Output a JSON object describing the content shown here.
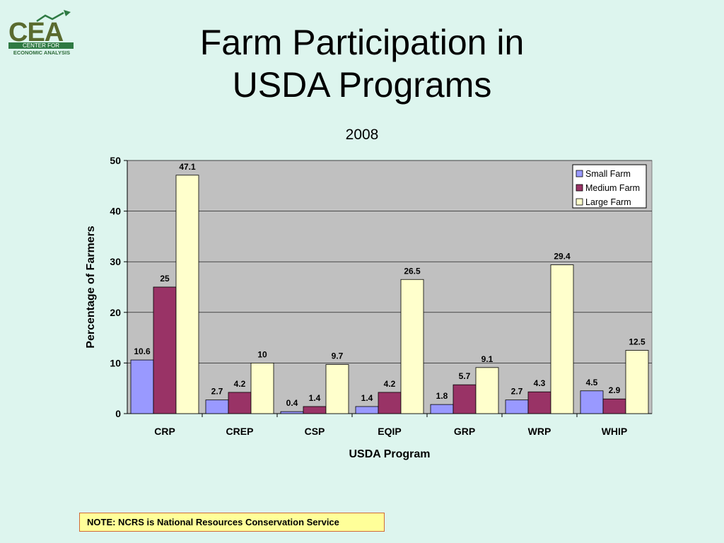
{
  "logo": {
    "text": "CEA",
    "line1": "CENTER FOR",
    "line2": "ECONOMIC ANALYSIS"
  },
  "title_line1": "Farm Participation in",
  "title_line2": "USDA Programs",
  "note": "NOTE: NCRS is National Resources Conservation Service",
  "colors": {
    "background": "#ddf5ee",
    "plot_area": "#c0c0c0",
    "small_farm": "#9999ff",
    "medium_farm": "#993366",
    "large_farm": "#ffffcc"
  },
  "chart_data": {
    "type": "bar",
    "title": "",
    "subtitle": "2008",
    "xlabel": "USDA Program",
    "ylabel": "Percentage of Farmers",
    "ylim": [
      0,
      50
    ],
    "yticks": [
      0,
      10,
      20,
      30,
      40,
      50
    ],
    "grid": true,
    "legend_position": "top-right",
    "categories": [
      "CRP",
      "CREP",
      "CSP",
      "EQIP",
      "GRP",
      "WRP",
      "WHIP"
    ],
    "series": [
      {
        "name": "Small Farm",
        "color": "#9999ff",
        "values": [
          10.6,
          2.7,
          0.4,
          1.4,
          1.8,
          2.7,
          4.5
        ]
      },
      {
        "name": "Medium Farm",
        "color": "#993366",
        "values": [
          25,
          4.2,
          1.4,
          4.2,
          5.7,
          4.3,
          2.9
        ]
      },
      {
        "name": "Large Farm",
        "color": "#ffffcc",
        "values": [
          47.1,
          10,
          9.7,
          26.5,
          9.1,
          29.4,
          12.5
        ]
      }
    ]
  }
}
